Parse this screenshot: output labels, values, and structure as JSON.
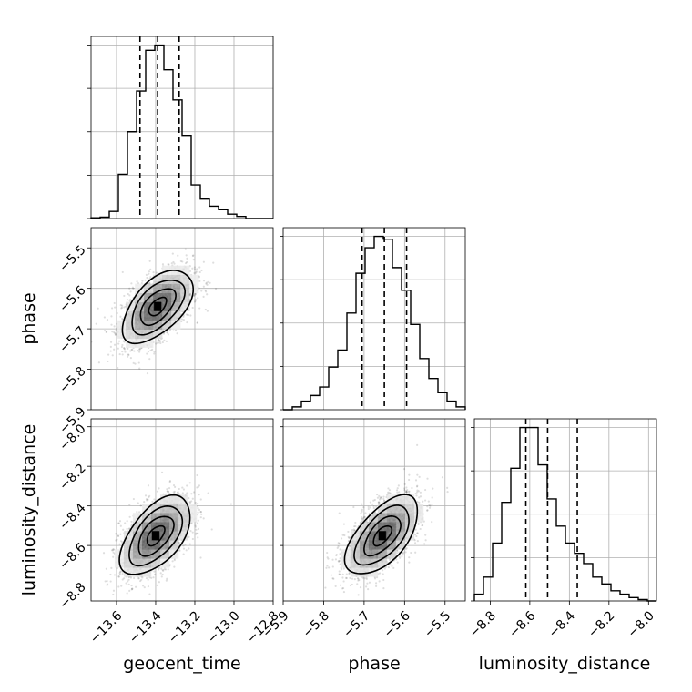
{
  "chart_data": {
    "type": "corner",
    "grid": true,
    "parameters": [
      "geocent_time",
      "phase",
      "luminosity_distance"
    ],
    "marginals": [
      {
        "param": "geocent_time",
        "range": [
          -13.73,
          -12.8
        ],
        "ticks": [
          -13.6,
          -13.4,
          -13.2,
          -13.0,
          -12.8
        ],
        "tick_labels": [
          "−13.6",
          "−13.4",
          "−13.2",
          "−13.0",
          "−12.8"
        ],
        "bins": 20,
        "density": [
          0.4,
          0.8,
          4,
          25,
          49,
          72,
          95,
          98,
          84,
          67,
          47,
          19,
          11,
          7,
          5,
          2.5,
          1.2,
          0,
          0,
          0
        ],
        "quantiles": [
          -13.48,
          -13.39,
          -13.28
        ]
      },
      {
        "param": "phase",
        "range": [
          -5.9,
          -5.45
        ],
        "ticks": [
          -5.9,
          -5.8,
          -5.7,
          -5.6,
          -5.5
        ],
        "tick_labels": [
          "−5.9",
          "−5.8",
          "−5.7",
          "−5.6",
          "−5.5"
        ],
        "bins": 20,
        "density": [
          0,
          1,
          3,
          5,
          8,
          15,
          21,
          34,
          48,
          57,
          61,
          60,
          50,
          42,
          30,
          18,
          11,
          6,
          3,
          1
        ],
        "quantiles": [
          -5.705,
          -5.65,
          -5.595
        ]
      },
      {
        "param": "luminosity_distance",
        "range": [
          -8.88,
          -7.96
        ],
        "ticks": [
          -8.8,
          -8.6,
          -8.4,
          -8.2,
          -8.0
        ],
        "tick_labels": [
          "−8.8",
          "−8.6",
          "−8.4",
          "−8.2",
          "−8.0"
        ],
        "bins": 20,
        "density": [
          2,
          7,
          17,
          29,
          39,
          51,
          51,
          40,
          30,
          22,
          17,
          14,
          11,
          7,
          5,
          3,
          2,
          1,
          0.4,
          0
        ],
        "quantiles": [
          -8.62,
          -8.51,
          -8.36
        ]
      }
    ],
    "pairs": [
      {
        "x": "geocent_time",
        "y": "phase",
        "peak": [
          -13.39,
          -5.645
        ],
        "sigma": [
          0.09,
          0.045
        ],
        "correlation": 0.55,
        "contour_levels": [
          0.118,
          0.393,
          0.675,
          0.864
        ]
      },
      {
        "x": "geocent_time",
        "y": "luminosity_distance",
        "peak": [
          -13.4,
          -8.55
        ],
        "sigma": [
          0.09,
          0.1
        ],
        "correlation": 0.55,
        "contour_levels": [
          0.118,
          0.393,
          0.675,
          0.864
        ]
      },
      {
        "x": "phase",
        "y": "luminosity_distance",
        "peak": [
          -5.655,
          -8.55
        ],
        "sigma": [
          0.045,
          0.1
        ],
        "correlation": 0.6,
        "contour_levels": [
          0.118,
          0.393,
          0.675,
          0.864
        ]
      }
    ]
  }
}
